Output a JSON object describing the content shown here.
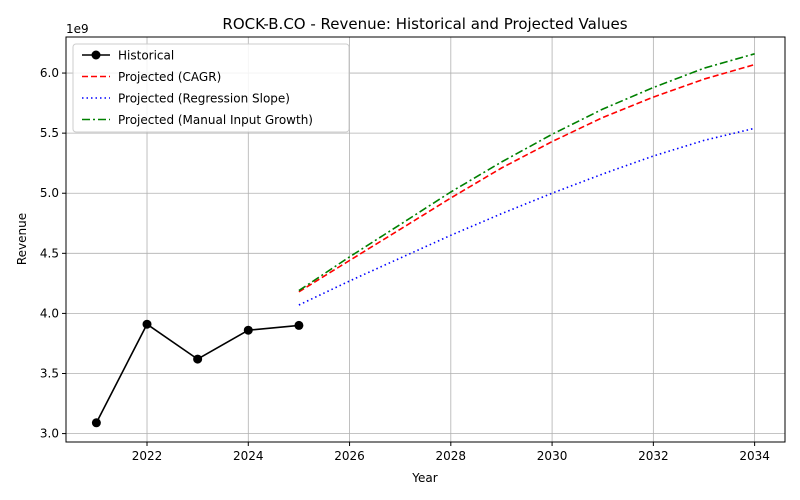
{
  "chart_data": {
    "type": "line",
    "title": "ROCK-B.CO - Revenue: Historical and Projected Values",
    "xlabel": "Year",
    "ylabel": "Revenue",
    "y_offset_label": "1e9",
    "xlim": [
      2020.4,
      2034.6
    ],
    "ylim": [
      2.93,
      6.3
    ],
    "x_ticks": [
      2022,
      2024,
      2026,
      2028,
      2030,
      2032,
      2034
    ],
    "x_tick_labels": [
      "2022",
      "2024",
      "2026",
      "2028",
      "2030",
      "2032",
      "2034"
    ],
    "y_ticks": [
      3.0,
      3.5,
      4.0,
      4.5,
      5.0,
      5.5,
      6.0
    ],
    "y_tick_labels": [
      "3.0",
      "3.5",
      "4.0",
      "4.5",
      "5.0",
      "5.5",
      "6.0"
    ],
    "grid": true,
    "legend_position": "top-left",
    "series": [
      {
        "name": "Historical",
        "color": "#000000",
        "style": "solid-marker",
        "x": [
          2021,
          2022,
          2023,
          2024,
          2025
        ],
        "values": [
          3.09,
          3.91,
          3.62,
          3.86,
          3.9
        ]
      },
      {
        "name": "Projected (CAGR)",
        "color": "#ff0000",
        "style": "dashed",
        "x": [
          2025,
          2026,
          2027,
          2028,
          2029,
          2030,
          2031,
          2032,
          2033,
          2034
        ],
        "values": [
          4.18,
          4.44,
          4.7,
          4.96,
          5.21,
          5.43,
          5.63,
          5.8,
          5.95,
          6.07
        ]
      },
      {
        "name": "Projected (Regression Slope)",
        "color": "#0000ff",
        "style": "dotted",
        "x": [
          2025,
          2026,
          2027,
          2028,
          2029,
          2030,
          2031,
          2032,
          2033,
          2034
        ],
        "values": [
          4.07,
          4.27,
          4.46,
          4.65,
          4.83,
          5.0,
          5.16,
          5.31,
          5.44,
          5.54
        ]
      },
      {
        "name": "Projected (Manual Input Growth)",
        "color": "#008000",
        "style": "dashdot",
        "x": [
          2025,
          2026,
          2027,
          2028,
          2029,
          2030,
          2031,
          2032,
          2033,
          2034
        ],
        "values": [
          4.19,
          4.47,
          4.74,
          5.01,
          5.26,
          5.49,
          5.7,
          5.88,
          6.04,
          6.16
        ]
      }
    ]
  }
}
